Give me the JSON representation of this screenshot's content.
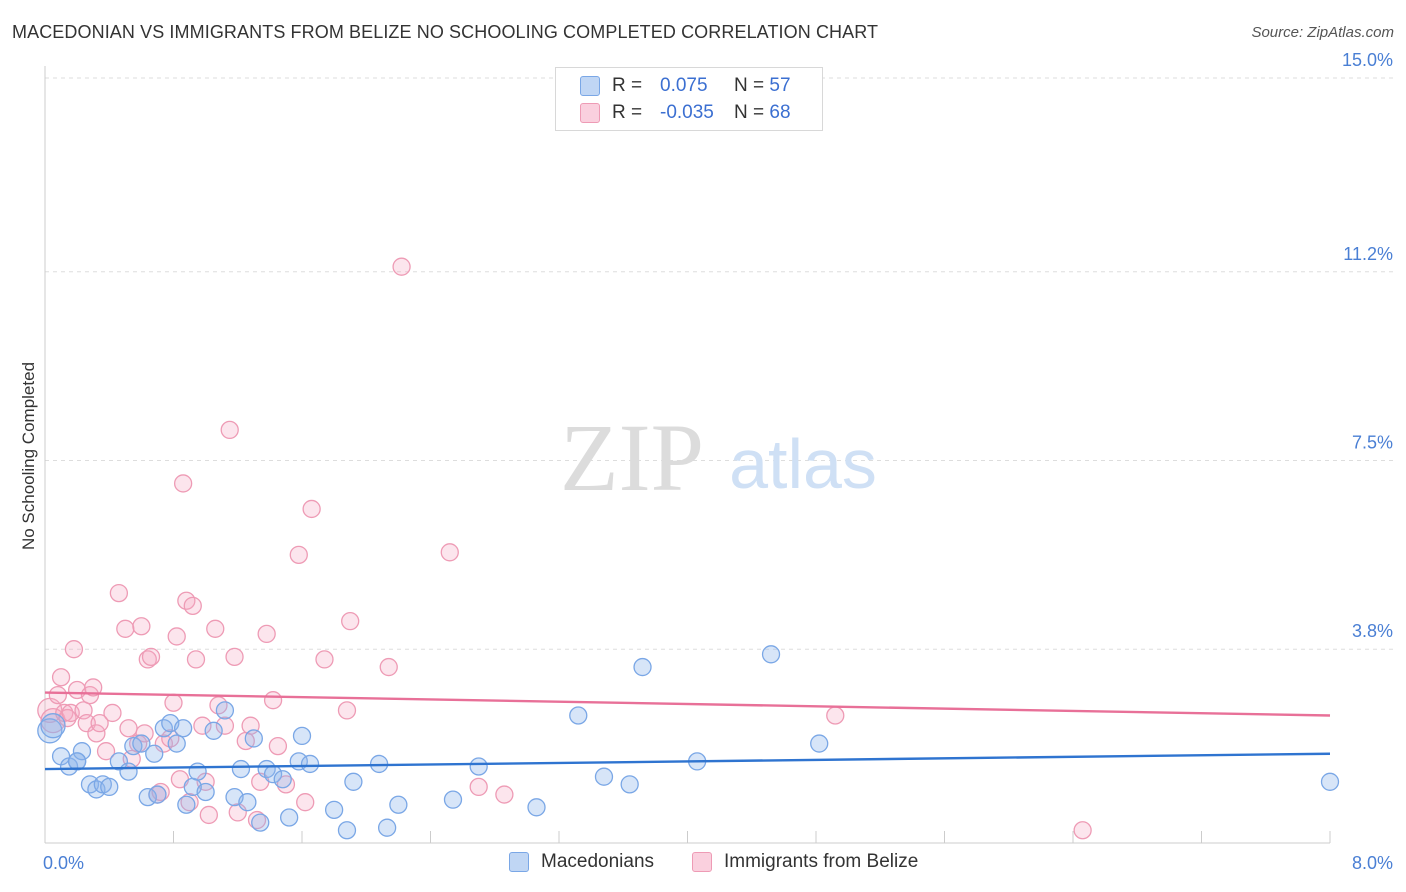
{
  "title": "MACEDONIAN VS IMMIGRANTS FROM BELIZE NO SCHOOLING COMPLETED CORRELATION CHART",
  "source": "Source: ZipAtlas.com",
  "colors": {
    "blue": "#7aa7e6",
    "blue_fill": "rgba(140,180,235,0.35)",
    "blue_line": "#2f74d0",
    "pink": "#ee9bb5",
    "pink_fill": "rgba(245,170,195,0.3)",
    "pink_line": "#e87098",
    "tick": "#4a7fd4",
    "grid": "#dddddd"
  },
  "legend": {
    "row1": {
      "r_label": "R =",
      "r_value": "0.075",
      "n_label": "N =",
      "n_value": "57"
    },
    "row2": {
      "r_label": "R =",
      "r_value": "-0.035",
      "n_label": "N =",
      "n_value": "68"
    }
  },
  "chart_data": {
    "type": "scatter",
    "title": "MACEDONIAN VS IMMIGRANTS FROM BELIZE NO SCHOOLING COMPLETED CORRELATION CHART",
    "xlabel": "",
    "ylabel": "No Schooling Completed",
    "xlim": [
      0,
      8.0
    ],
    "ylim": [
      0,
      15.0
    ],
    "x_tick_labels": [
      "0.0%",
      "8.0%"
    ],
    "y_ticks": [
      3.8,
      7.5,
      11.2,
      15.0
    ],
    "y_tick_labels": [
      "3.8%",
      "7.5%",
      "11.2%",
      "15.0%"
    ],
    "watermark": {
      "zip": "ZIP",
      "atlas": "atlas"
    },
    "series": [
      {
        "name": "Macedonians",
        "r": 0.075,
        "n": 57,
        "trend": [
          [
            0,
            1.45
          ],
          [
            8.0,
            1.75
          ]
        ],
        "points": [
          [
            0.03,
            2.2
          ],
          [
            0.05,
            2.3
          ],
          [
            0.1,
            1.7
          ],
          [
            0.15,
            1.5
          ],
          [
            0.2,
            1.6
          ],
          [
            0.23,
            1.8
          ],
          [
            0.28,
            1.15
          ],
          [
            0.32,
            1.05
          ],
          [
            0.36,
            1.15
          ],
          [
            0.4,
            1.1
          ],
          [
            0.46,
            1.6
          ],
          [
            0.52,
            1.4
          ],
          [
            0.55,
            1.9
          ],
          [
            0.6,
            1.95
          ],
          [
            0.64,
            0.9
          ],
          [
            0.68,
            1.75
          ],
          [
            0.7,
            0.95
          ],
          [
            0.74,
            2.25
          ],
          [
            0.78,
            2.35
          ],
          [
            0.82,
            1.95
          ],
          [
            0.86,
            2.25
          ],
          [
            0.88,
            0.75
          ],
          [
            0.92,
            1.1
          ],
          [
            0.95,
            1.4
          ],
          [
            1.0,
            1.0
          ],
          [
            1.05,
            2.2
          ],
          [
            1.12,
            2.6
          ],
          [
            1.18,
            0.9
          ],
          [
            1.22,
            1.45
          ],
          [
            1.26,
            0.8
          ],
          [
            1.3,
            2.05
          ],
          [
            1.34,
            0.4
          ],
          [
            1.38,
            1.45
          ],
          [
            1.42,
            1.35
          ],
          [
            1.48,
            1.25
          ],
          [
            1.52,
            0.5
          ],
          [
            1.58,
            1.6
          ],
          [
            1.6,
            2.1
          ],
          [
            1.65,
            1.55
          ],
          [
            1.8,
            0.65
          ],
          [
            1.88,
            0.25
          ],
          [
            1.92,
            1.2
          ],
          [
            2.08,
            1.55
          ],
          [
            2.13,
            0.3
          ],
          [
            2.2,
            0.75
          ],
          [
            2.54,
            0.85
          ],
          [
            2.7,
            1.5
          ],
          [
            3.06,
            0.7
          ],
          [
            3.32,
            2.5
          ],
          [
            3.48,
            1.3
          ],
          [
            3.64,
            1.15
          ],
          [
            3.72,
            3.45
          ],
          [
            4.06,
            1.6
          ],
          [
            4.52,
            3.7
          ],
          [
            4.82,
            1.95
          ],
          [
            8.0,
            1.2
          ],
          [
            0.2,
            1.6
          ]
        ]
      },
      {
        "name": "Immigrants from Belize",
        "r": -0.035,
        "n": 68,
        "trend": [
          [
            0,
            2.95
          ],
          [
            8.0,
            2.5
          ]
        ],
        "points": [
          [
            0.03,
            2.6
          ],
          [
            0.05,
            2.4
          ],
          [
            0.08,
            2.9
          ],
          [
            0.1,
            3.25
          ],
          [
            0.12,
            2.55
          ],
          [
            0.14,
            2.45
          ],
          [
            0.16,
            2.55
          ],
          [
            0.18,
            3.8
          ],
          [
            0.2,
            3.0
          ],
          [
            0.24,
            2.6
          ],
          [
            0.26,
            2.35
          ],
          [
            0.28,
            2.9
          ],
          [
            0.3,
            3.05
          ],
          [
            0.32,
            2.15
          ],
          [
            0.34,
            2.35
          ],
          [
            0.38,
            1.8
          ],
          [
            0.42,
            2.55
          ],
          [
            0.46,
            4.9
          ],
          [
            0.5,
            4.2
          ],
          [
            0.52,
            2.25
          ],
          [
            0.54,
            1.65
          ],
          [
            0.58,
            1.95
          ],
          [
            0.6,
            4.25
          ],
          [
            0.62,
            2.15
          ],
          [
            0.64,
            3.6
          ],
          [
            0.66,
            3.65
          ],
          [
            0.7,
            0.95
          ],
          [
            0.72,
            1.0
          ],
          [
            0.74,
            1.95
          ],
          [
            0.78,
            2.05
          ],
          [
            0.8,
            2.75
          ],
          [
            0.82,
            4.05
          ],
          [
            0.84,
            1.25
          ],
          [
            0.86,
            7.05
          ],
          [
            0.88,
            4.75
          ],
          [
            0.9,
            0.8
          ],
          [
            0.92,
            4.65
          ],
          [
            0.94,
            3.6
          ],
          [
            0.98,
            2.3
          ],
          [
            1.0,
            1.2
          ],
          [
            1.02,
            0.55
          ],
          [
            1.06,
            4.2
          ],
          [
            1.08,
            2.7
          ],
          [
            1.12,
            2.3
          ],
          [
            1.15,
            8.1
          ],
          [
            1.18,
            3.65
          ],
          [
            1.2,
            0.6
          ],
          [
            1.25,
            2.0
          ],
          [
            1.28,
            2.3
          ],
          [
            1.32,
            0.45
          ],
          [
            1.34,
            1.2
          ],
          [
            1.38,
            4.1
          ],
          [
            1.42,
            2.8
          ],
          [
            1.45,
            1.9
          ],
          [
            1.5,
            1.15
          ],
          [
            1.58,
            5.65
          ],
          [
            1.62,
            0.8
          ],
          [
            1.66,
            6.55
          ],
          [
            1.74,
            3.6
          ],
          [
            1.88,
            2.6
          ],
          [
            1.9,
            4.35
          ],
          [
            2.14,
            3.45
          ],
          [
            2.22,
            11.3
          ],
          [
            2.52,
            5.7
          ],
          [
            2.7,
            1.1
          ],
          [
            2.86,
            0.95
          ],
          [
            4.92,
            2.5
          ],
          [
            6.46,
            0.25
          ]
        ]
      }
    ]
  },
  "bottom_legend": {
    "series1": "Macedonians",
    "series2": "Immigrants from Belize"
  }
}
